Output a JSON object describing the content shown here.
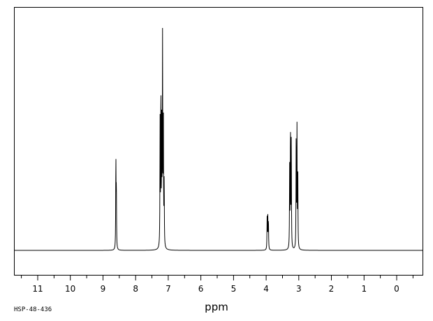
{
  "chart_data": {
    "type": "line",
    "spectrum_kind": "1H NMR",
    "xlabel": "ppm",
    "x_reversed": true,
    "xlim": [
      11.7,
      -0.8
    ],
    "x_ticks": [
      11,
      10,
      9,
      8,
      7,
      6,
      5,
      4,
      3,
      2,
      1,
      0
    ],
    "x_tick_labels": [
      "11",
      "10",
      "9",
      "8",
      "7",
      "6",
      "5",
      "4",
      "3",
      "2",
      "1",
      "0"
    ],
    "x_minor_tick_step": 0.5,
    "ylim": [
      0,
      1.0
    ],
    "y_axis_visible": false,
    "grid": false,
    "baseline": 0,
    "peaks": [
      {
        "ppm": 8.605,
        "height": 0.4
      },
      {
        "ppm": 8.59,
        "height": 0.27
      },
      {
        "ppm": 7.25,
        "height": 0.56
      },
      {
        "ppm": 7.225,
        "height": 0.7
      },
      {
        "ppm": 7.2,
        "height": 0.55
      },
      {
        "ppm": 7.175,
        "height": 0.99
      },
      {
        "ppm": 7.15,
        "height": 0.61
      },
      {
        "ppm": 7.125,
        "height": 0.29
      },
      {
        "ppm": 3.97,
        "height": 0.14
      },
      {
        "ppm": 3.95,
        "height": 0.15
      },
      {
        "ppm": 3.93,
        "height": 0.13
      },
      {
        "ppm": 3.28,
        "height": 0.36
      },
      {
        "ppm": 3.255,
        "height": 0.54
      },
      {
        "ppm": 3.23,
        "height": 0.5
      },
      {
        "ppm": 3.08,
        "height": 0.51
      },
      {
        "ppm": 3.055,
        "height": 0.53
      },
      {
        "ppm": 3.03,
        "height": 0.35
      }
    ]
  },
  "sample_code": "HSP-48-436",
  "axis_title": "ppm",
  "colors": {
    "line": "#000000",
    "background": "#ffffff",
    "frame": "#000000"
  }
}
